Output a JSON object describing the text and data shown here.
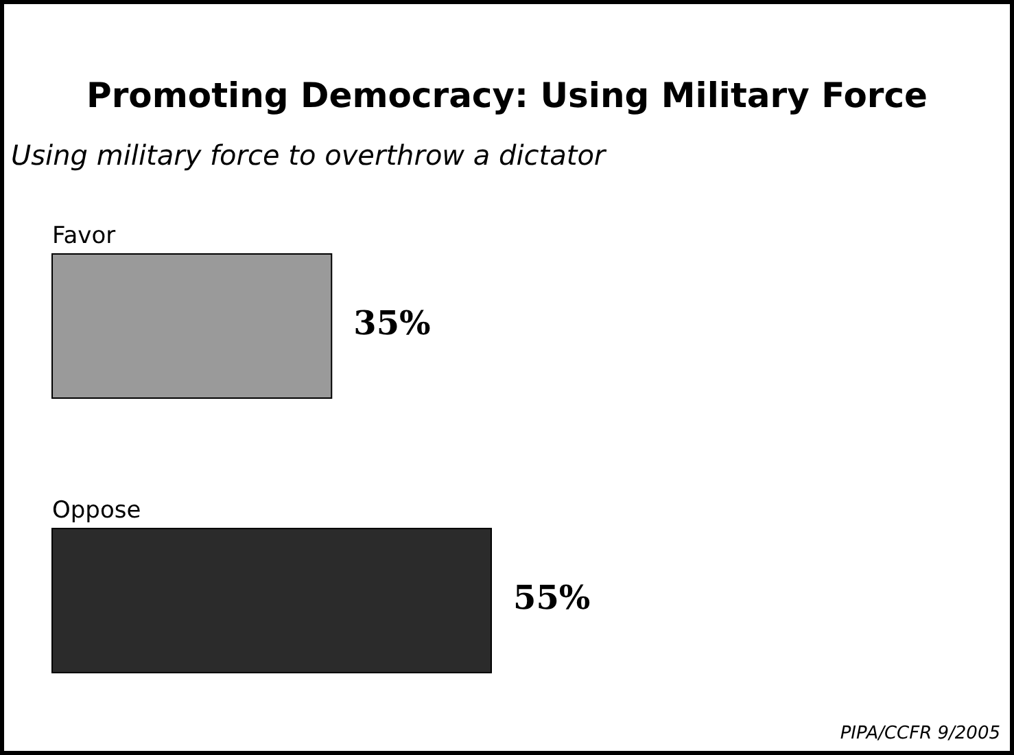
{
  "chart_data": {
    "type": "bar",
    "orientation": "horizontal",
    "title": "Promoting Democracy: Using Military Force",
    "subtitle": "Using military force to overthrow a dictator",
    "categories": [
      "Favor",
      "Oppose"
    ],
    "values": [
      35,
      55
    ],
    "colors": [
      "#9a9a9a",
      "#2b2b2b"
    ],
    "data_labels": true,
    "value_labels": [
      "35%",
      "55%"
    ],
    "annotations": [
      "PIPA/CCFR 9/2005"
    ]
  }
}
